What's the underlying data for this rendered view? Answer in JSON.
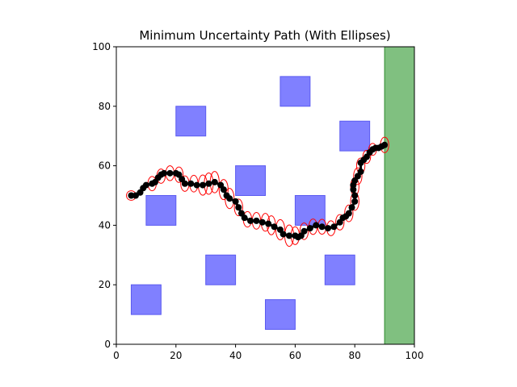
{
  "chart_data": {
    "type": "scatter",
    "title": "Minimum Uncertainty Path (With Ellipses)",
    "xlabel": "",
    "ylabel": "",
    "xlim": [
      0,
      100
    ],
    "ylim": [
      0,
      100
    ],
    "xticks": [
      "0",
      "20",
      "40",
      "60",
      "80",
      "100"
    ],
    "yticks": [
      "0",
      "20",
      "40",
      "60",
      "80",
      "100"
    ],
    "grid": false,
    "obstacles": [
      {
        "x": 5,
        "y": 10,
        "w": 10,
        "h": 10
      },
      {
        "x": 10,
        "y": 40,
        "w": 10,
        "h": 10
      },
      {
        "x": 20,
        "y": 70,
        "w": 10,
        "h": 10
      },
      {
        "x": 30,
        "y": 20,
        "w": 10,
        "h": 10
      },
      {
        "x": 40,
        "y": 50,
        "w": 10,
        "h": 10
      },
      {
        "x": 50,
        "y": 5,
        "w": 10,
        "h": 10
      },
      {
        "x": 55,
        "y": 80,
        "w": 10,
        "h": 10
      },
      {
        "x": 60,
        "y": 40,
        "w": 10,
        "h": 10
      },
      {
        "x": 70,
        "y": 20,
        "w": 10,
        "h": 10
      },
      {
        "x": 75,
        "y": 65,
        "w": 10,
        "h": 10
      }
    ],
    "goal_region": {
      "x": 90,
      "y": 0,
      "w": 10,
      "h": 100
    },
    "path": [
      [
        5,
        50
      ],
      [
        6.5,
        50
      ],
      [
        8,
        51
      ],
      [
        9,
        52.5
      ],
      [
        10,
        53.5
      ],
      [
        12,
        54
      ],
      [
        13,
        54.5
      ],
      [
        14,
        56
      ],
      [
        15,
        57
      ],
      [
        16,
        57.5
      ],
      [
        18,
        57.5
      ],
      [
        20,
        57.5
      ],
      [
        21,
        57
      ],
      [
        22,
        55.5
      ],
      [
        23,
        54
      ],
      [
        25,
        54
      ],
      [
        27,
        53.5
      ],
      [
        29,
        53.5
      ],
      [
        31,
        54
      ],
      [
        33,
        54.5
      ],
      [
        35,
        53.5
      ],
      [
        36,
        52
      ],
      [
        37,
        50
      ],
      [
        38,
        49
      ],
      [
        40,
        48
      ],
      [
        41,
        46
      ],
      [
        42,
        44
      ],
      [
        43,
        42.5
      ],
      [
        45,
        41.5
      ],
      [
        47,
        41.5
      ],
      [
        49,
        41
      ],
      [
        51,
        40.5
      ],
      [
        53,
        39.5
      ],
      [
        55,
        38.5
      ],
      [
        56,
        37
      ],
      [
        58,
        36.5
      ],
      [
        60,
        36.5
      ],
      [
        61,
        36
      ],
      [
        62,
        36.5
      ],
      [
        63,
        38
      ],
      [
        65,
        39
      ],
      [
        67,
        40
      ],
      [
        69,
        39.5
      ],
      [
        71,
        39
      ],
      [
        73,
        39.5
      ],
      [
        75,
        41
      ],
      [
        76,
        42.5
      ],
      [
        77,
        43
      ],
      [
        78,
        44
      ],
      [
        79,
        46
      ],
      [
        80,
        48
      ],
      [
        80,
        50
      ],
      [
        79.5,
        52
      ],
      [
        79.5,
        53.5
      ],
      [
        80,
        55
      ],
      [
        81,
        56.5
      ],
      [
        82,
        58
      ],
      [
        82,
        61
      ],
      [
        83,
        62
      ],
      [
        84,
        63
      ],
      [
        85,
        64.5
      ],
      [
        86,
        65.5
      ],
      [
        87,
        66
      ],
      [
        88,
        66
      ],
      [
        89,
        66.5
      ],
      [
        90,
        67
      ]
    ],
    "uncertainty_ellipses": [
      {
        "x": 5,
        "y": 50,
        "rx": 1.6,
        "ry": 1.6
      },
      {
        "x": 12,
        "y": 54,
        "rx": 1.4,
        "ry": 2.4
      },
      {
        "x": 15,
        "y": 56.5,
        "rx": 1.4,
        "ry": 2.4
      },
      {
        "x": 18,
        "y": 57.5,
        "rx": 1.4,
        "ry": 2.5
      },
      {
        "x": 21,
        "y": 57,
        "rx": 1.4,
        "ry": 2.6
      },
      {
        "x": 23,
        "y": 54,
        "rx": 1.4,
        "ry": 2.6
      },
      {
        "x": 26,
        "y": 54,
        "rx": 1.4,
        "ry": 2.8
      },
      {
        "x": 29,
        "y": 53.5,
        "rx": 1.5,
        "ry": 3.4
      },
      {
        "x": 31,
        "y": 54,
        "rx": 1.5,
        "ry": 3.6
      },
      {
        "x": 33,
        "y": 54.5,
        "rx": 1.5,
        "ry": 3.6
      },
      {
        "x": 36,
        "y": 52,
        "rx": 1.5,
        "ry": 3.4
      },
      {
        "x": 38,
        "y": 49,
        "rx": 1.5,
        "ry": 3.4
      },
      {
        "x": 41,
        "y": 46,
        "rx": 1.4,
        "ry": 2.8
      },
      {
        "x": 44,
        "y": 42,
        "rx": 1.4,
        "ry": 2.6
      },
      {
        "x": 47,
        "y": 41.5,
        "rx": 1.4,
        "ry": 2.8
      },
      {
        "x": 50,
        "y": 41,
        "rx": 1.4,
        "ry": 3.0
      },
      {
        "x": 52,
        "y": 40,
        "rx": 1.4,
        "ry": 3.2
      },
      {
        "x": 55,
        "y": 38.5,
        "rx": 1.5,
        "ry": 3.4
      },
      {
        "x": 58,
        "y": 36.5,
        "rx": 1.5,
        "ry": 3.6
      },
      {
        "x": 60,
        "y": 36.5,
        "rx": 1.4,
        "ry": 3.0
      },
      {
        "x": 63,
        "y": 38,
        "rx": 1.4,
        "ry": 2.8
      },
      {
        "x": 66,
        "y": 39.5,
        "rx": 1.4,
        "ry": 2.6
      },
      {
        "x": 69,
        "y": 39.5,
        "rx": 1.4,
        "ry": 2.5
      },
      {
        "x": 72,
        "y": 39,
        "rx": 1.4,
        "ry": 2.5
      },
      {
        "x": 75,
        "y": 41,
        "rx": 1.4,
        "ry": 2.6
      },
      {
        "x": 78,
        "y": 44,
        "rx": 1.4,
        "ry": 2.8
      },
      {
        "x": 80,
        "y": 48,
        "rx": 1.4,
        "ry": 3.0
      },
      {
        "x": 80,
        "y": 53,
        "rx": 1.4,
        "ry": 3.0
      },
      {
        "x": 81,
        "y": 56.5,
        "rx": 1.4,
        "ry": 2.8
      },
      {
        "x": 82,
        "y": 60,
        "rx": 1.4,
        "ry": 2.6
      },
      {
        "x": 84,
        "y": 63,
        "rx": 1.3,
        "ry": 2.2
      },
      {
        "x": 86,
        "y": 65.5,
        "rx": 1.3,
        "ry": 2.0
      },
      {
        "x": 90,
        "y": 67,
        "rx": 1.4,
        "ry": 2.6
      }
    ],
    "colors": {
      "obstacle_fill": "#8080ff",
      "obstacle_edge": "#5a5af0",
      "goal_fill": "#80c080",
      "goal_edge": "#2e8b2e",
      "path": "#000000",
      "ellipse": "#ff0000"
    }
  }
}
